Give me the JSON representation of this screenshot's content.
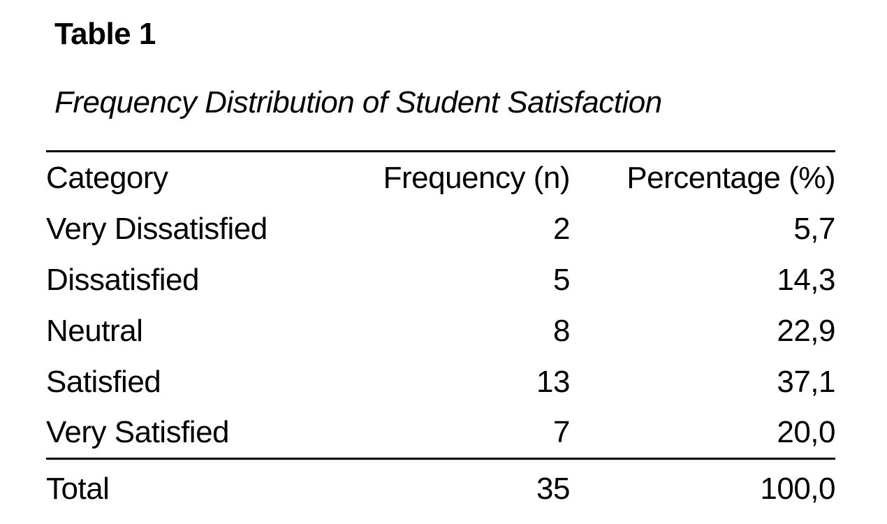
{
  "document": {
    "table_number": "Table 1",
    "table_title": "Frequency Distribution of Student Satisfaction"
  },
  "table": {
    "columns": {
      "category": "Category",
      "frequency": "Frequency (n)",
      "percentage": "Percentage (%)"
    },
    "rows": [
      {
        "category": "Very Dissatisfied",
        "frequency": "2",
        "percentage": "5,7"
      },
      {
        "category": "Dissatisfied",
        "frequency": "5",
        "percentage": "14,3"
      },
      {
        "category": "Neutral",
        "frequency": "8",
        "percentage": "22,9"
      },
      {
        "category": "Satisfied",
        "frequency": "13",
        "percentage": "37,1"
      },
      {
        "category": "Very Satisfied",
        "frequency": "7",
        "percentage": "20,0"
      }
    ],
    "total": {
      "label": "Total",
      "frequency": "35",
      "percentage": "100,0"
    }
  },
  "colors": {
    "text": "#000000",
    "background": "#ffffff",
    "rule": "#000000"
  }
}
